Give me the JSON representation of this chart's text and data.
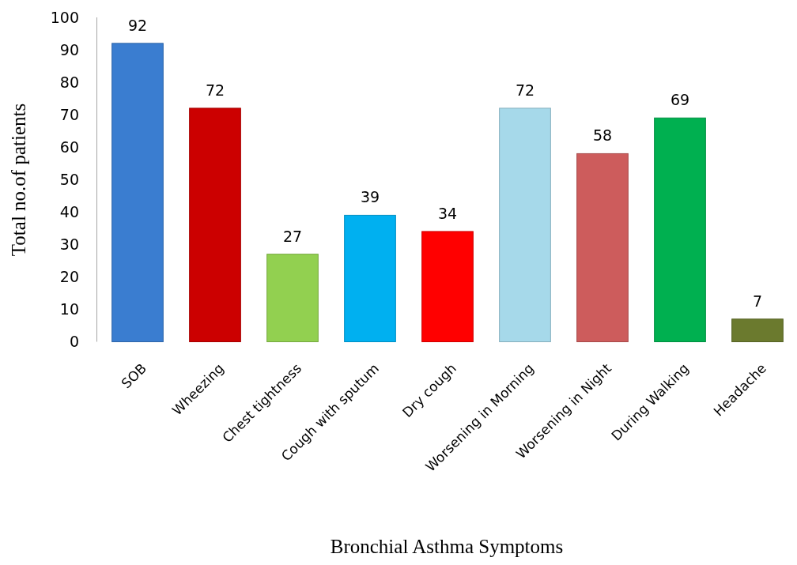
{
  "chart_data": {
    "type": "bar",
    "xlabel": "Bronchial Asthma Symptoms",
    "ylabel": "Total no.of patients",
    "categories": [
      "SOB",
      "Wheezing",
      "Chest tightness",
      "Cough with sputum",
      "Dry cough",
      "Worsening in Morning",
      "Worsening in Night",
      "During Walking",
      "Headache"
    ],
    "values": [
      92,
      72,
      27,
      39,
      34,
      72,
      58,
      69,
      7
    ],
    "colors": [
      "#3a7dd0",
      "#cc0000",
      "#92d050",
      "#00b0f0",
      "#ff0000",
      "#a6d9ea",
      "#cd5c5c",
      "#00b050",
      "#6b7a2e"
    ],
    "ylim": [
      0,
      100
    ],
    "yticks": [
      0,
      10,
      20,
      30,
      40,
      50,
      60,
      70,
      80,
      90,
      100
    ],
    "data_labels": true,
    "grid": false
  }
}
